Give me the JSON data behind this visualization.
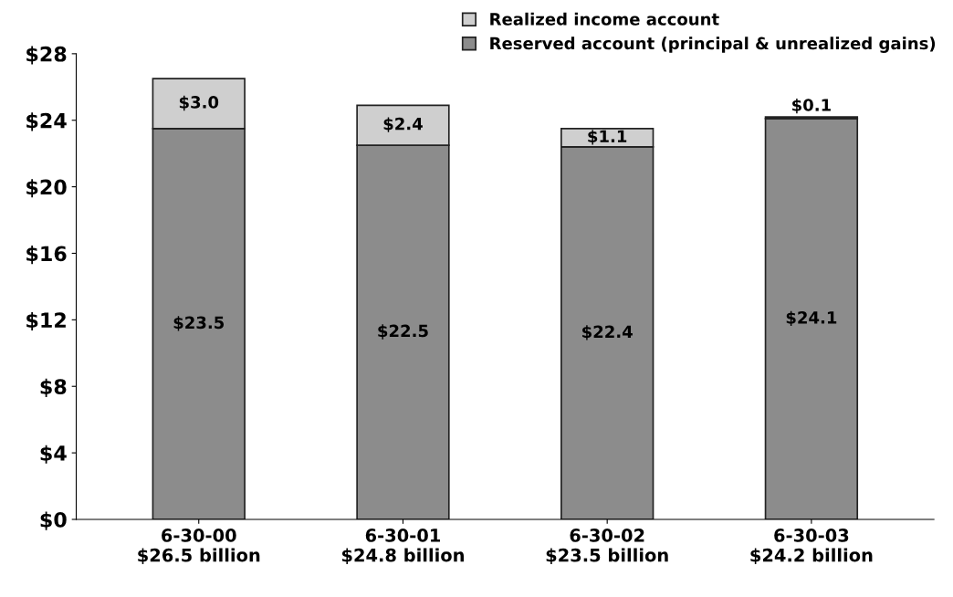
{
  "chart_data": {
    "type": "bar",
    "stacked": true,
    "categories": [
      "6-30-00\n$26.5 billion",
      "6-30-01\n$24.8 billion",
      "6-30-02\n$23.5 billion",
      "6-30-03\n$24.2 billion"
    ],
    "series": [
      {
        "name": "Reserved account (principal & unrealized gains)",
        "color": "#8c8c8c",
        "values": [
          23.5,
          22.5,
          22.4,
          24.1
        ],
        "value_labels": [
          "$23.5",
          "$22.5",
          "$22.4",
          "$24.1"
        ]
      },
      {
        "name": "Realized income account",
        "color": "#cfcfcf",
        "values": [
          3.0,
          2.4,
          1.1,
          0.1
        ],
        "value_labels": [
          "$3.0",
          "$2.4",
          "$1.1",
          "$0.1"
        ]
      }
    ],
    "ylim": [
      0,
      28
    ],
    "yticks": [
      {
        "value": 0,
        "label": "$0"
      },
      {
        "value": 4,
        "label": "$4"
      },
      {
        "value": 8,
        "label": "$8"
      },
      {
        "value": 12,
        "label": "$12"
      },
      {
        "value": 16,
        "label": "$16"
      },
      {
        "value": 20,
        "label": "$20"
      },
      {
        "value": 24,
        "label": "$24"
      },
      {
        "value": 28,
        "label": "$28"
      }
    ],
    "grid": false,
    "legend": "top right"
  }
}
